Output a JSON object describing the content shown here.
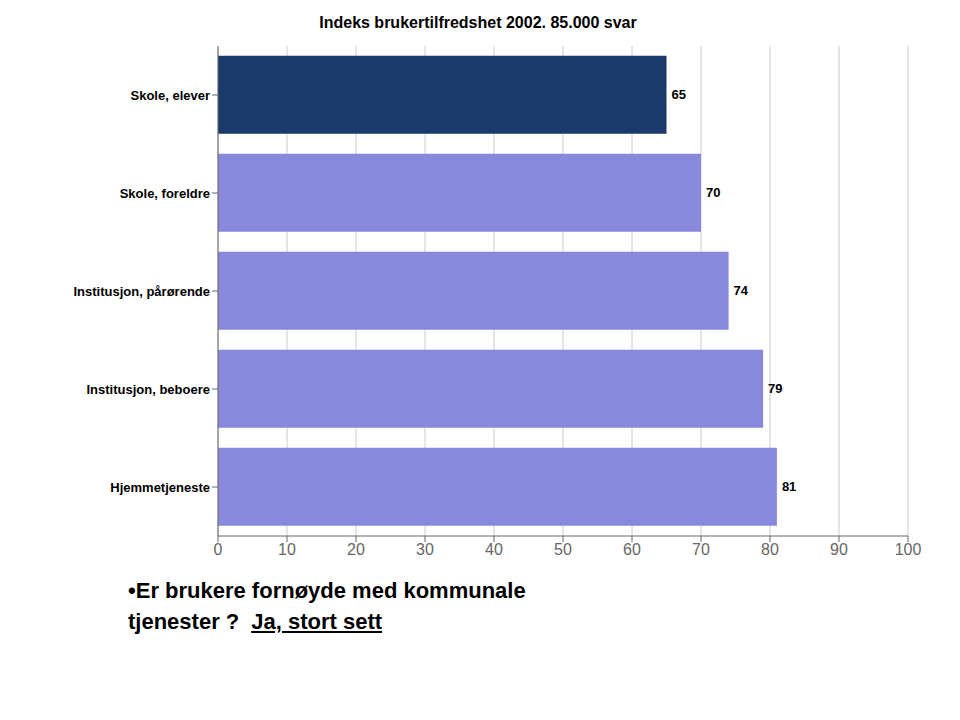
{
  "chart_data": {
    "type": "bar",
    "orientation": "horizontal",
    "title": "Indeks brukertilfredshet 2002. 85.000 svar",
    "categories": [
      "Skole, elever",
      "Skole, foreldre",
      "Institusjon, pårørende",
      "Institusjon, beboere",
      "Hjemmetjeneste"
    ],
    "values": [
      65,
      70,
      74,
      79,
      81
    ],
    "colors": [
      "#1a3a6b",
      "#8888dd",
      "#8888dd",
      "#8888dd",
      "#8888dd"
    ],
    "xlim": [
      0,
      100
    ],
    "xticks": [
      0,
      10,
      20,
      30,
      40,
      50,
      60,
      70,
      80,
      90,
      100
    ],
    "grid": true,
    "data_labels": true,
    "annotations": [
      "•Er brukere fornøyde med kommunale",
      "tjenester ?",
      "Ja, stort sett"
    ]
  }
}
